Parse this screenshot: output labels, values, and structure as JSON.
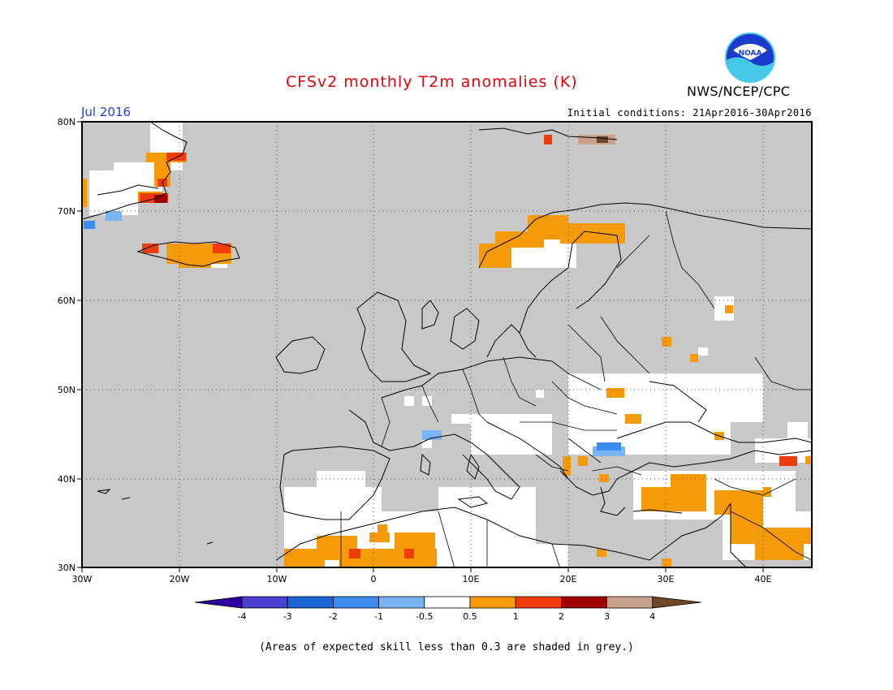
{
  "header": {
    "title": "CFSv2 monthly T2m anomalies (K)",
    "month": "Jul 2016",
    "initial_conditions": "Initial conditions: 21Apr2016-30Apr2016",
    "agency": "NWS/NCEP/CPC",
    "logo_text": "NOAA"
  },
  "map": {
    "lat_labels": [
      "80N",
      "70N",
      "60N",
      "50N",
      "40N",
      "30N"
    ],
    "lon_labels": [
      "30W",
      "20W",
      "10W",
      "0",
      "10E",
      "20E",
      "30E",
      "40E"
    ],
    "extent": {
      "lon_min": -30,
      "lon_max": 45,
      "lat_min": 30,
      "lat_max": 80
    },
    "grid": "dotted",
    "skill_mask_color": "#c8c8c8"
  },
  "colorbar": {
    "tick_labels": [
      "-4",
      "-3",
      "-2",
      "-1",
      "-0.5",
      "0.5",
      "1",
      "2",
      "3",
      "4"
    ],
    "colors": [
      "#2d00a0",
      "#4a3fd0",
      "#1a64d2",
      "#3c8cf0",
      "#78b4f5",
      "#ffffff",
      "#f59b0a",
      "#f03c0a",
      "#a00000",
      "#c8a08c",
      "#6e4628"
    ]
  },
  "footnote": "(Areas of expected skill less than 0.3 are shaded in grey.)"
}
